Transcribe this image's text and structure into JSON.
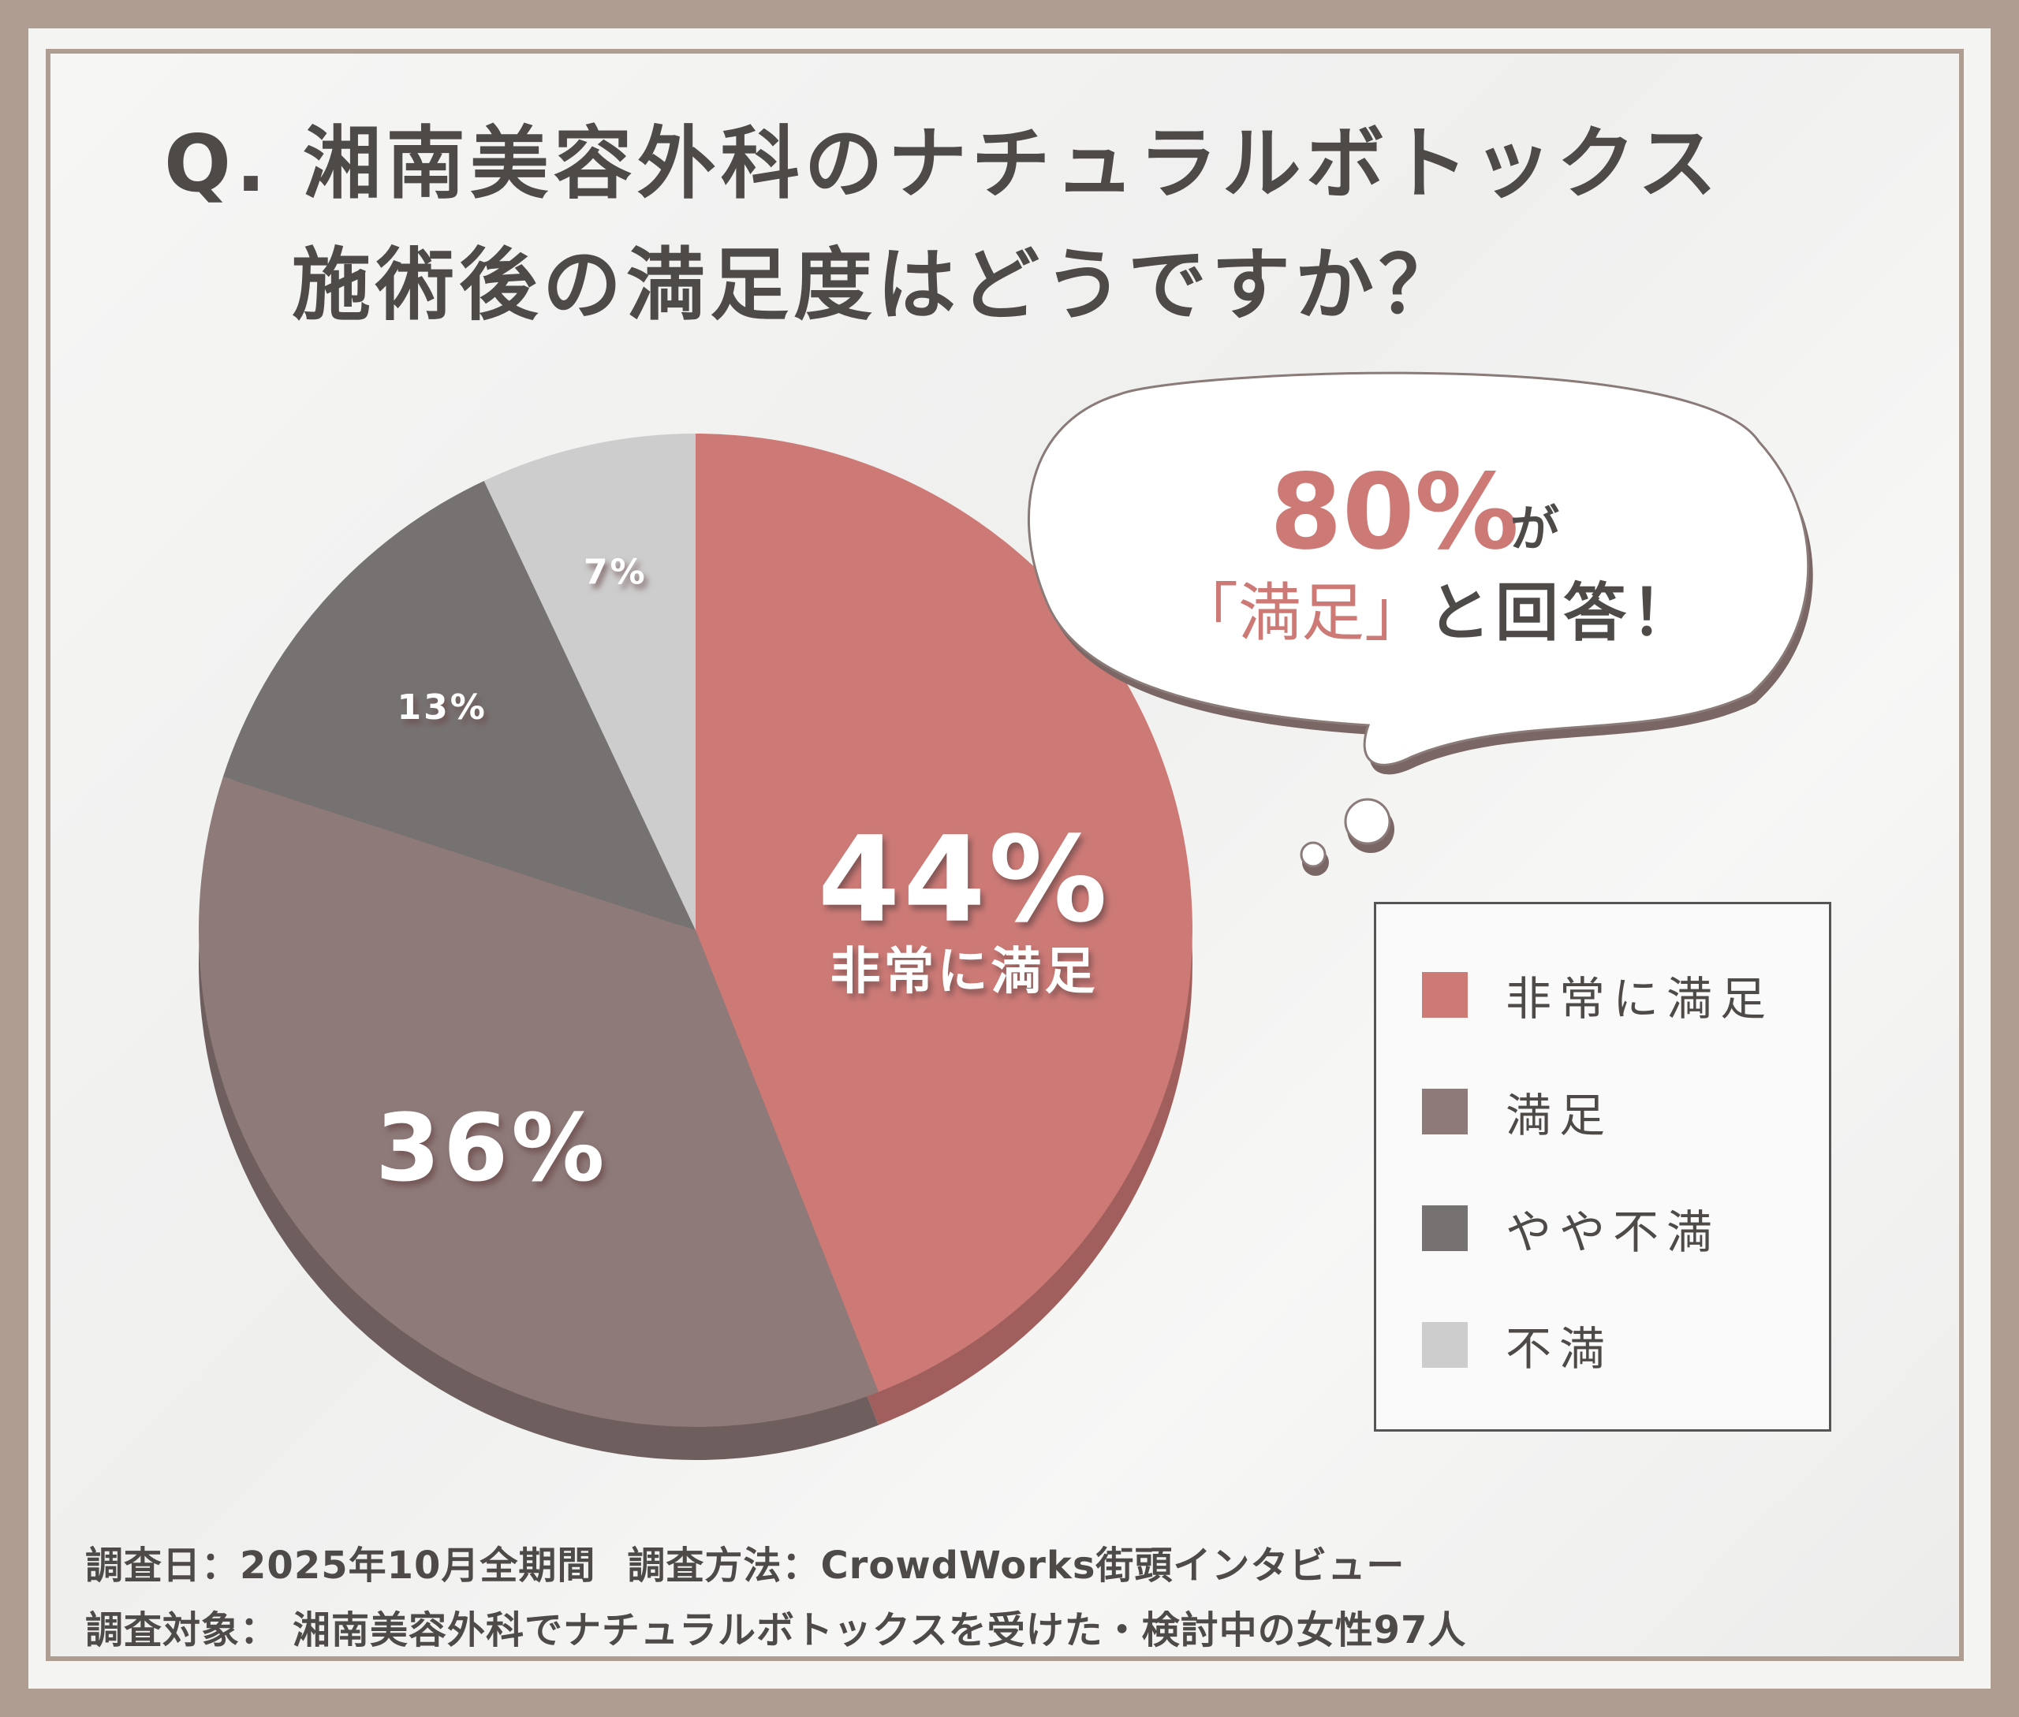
{
  "title": {
    "line1": "Q. 湘南美容外科のナチュラルボトックス",
    "line2": "施術後の満足度はどうですか？"
  },
  "chart_data": {
    "type": "pie",
    "categories": [
      "非常に満足",
      "満足",
      "やや不満",
      "不満"
    ],
    "values": [
      44,
      36,
      13,
      7
    ],
    "labels": [
      "44%",
      "36%",
      "13%",
      "7%"
    ],
    "slice_label_sub": [
      "非常に満足",
      "",
      "",
      ""
    ],
    "colors": [
      "#cd7a76",
      "#8d7a79",
      "#767271",
      "#cdcdcd"
    ],
    "legend_position": "right",
    "legend": [
      "非常に満足",
      "満足",
      "やや不満",
      "不満"
    ]
  },
  "callout": {
    "percent": "80%",
    "ga": "が",
    "quote": "「満足」",
    "suffix": "と回答！"
  },
  "footer": {
    "date_label": "調査日：",
    "date_value": "2025年10月全期間",
    "method_label": "調査方法：",
    "method_value": "CrowdWorks街頭インタビュー",
    "target_label": "調査対象：",
    "target_value": "湘南美容外科でナチュラルボトックスを受けた・検討中の女性97人"
  }
}
